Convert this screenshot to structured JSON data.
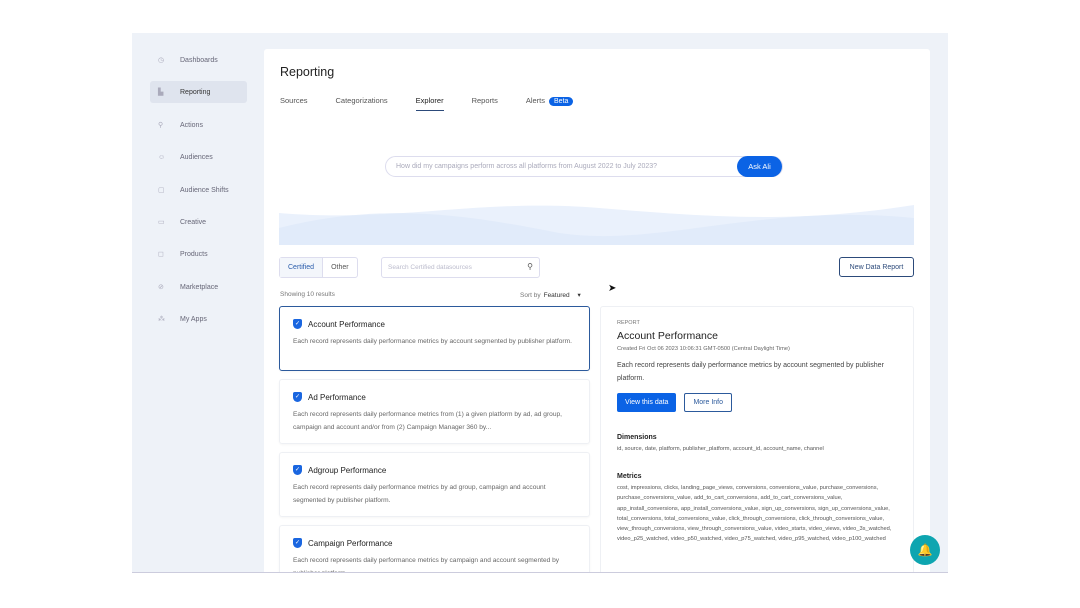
{
  "sidebar": {
    "items": [
      {
        "label": "Dashboards",
        "icon": "clock-icon",
        "active": false
      },
      {
        "label": "Reporting",
        "icon": "bar-chart-icon",
        "active": true
      },
      {
        "label": "Actions",
        "icon": "pin-icon",
        "active": false
      },
      {
        "label": "Audiences",
        "icon": "users-icon",
        "active": false
      },
      {
        "label": "Audience Shifts",
        "icon": "thumb-icon",
        "active": false
      },
      {
        "label": "Creative",
        "icon": "image-icon",
        "active": false
      },
      {
        "label": "Products",
        "icon": "bag-icon",
        "active": false
      },
      {
        "label": "Marketplace",
        "icon": "compass-icon",
        "active": false
      },
      {
        "label": "My Apps",
        "icon": "apps-icon",
        "active": false
      }
    ]
  },
  "header": {
    "title": "Reporting"
  },
  "tabs": [
    {
      "label": "Sources"
    },
    {
      "label": "Categorizations"
    },
    {
      "label": "Explorer",
      "active": true
    },
    {
      "label": "Reports"
    },
    {
      "label": "Alerts",
      "badge": "Beta"
    }
  ],
  "ask": {
    "placeholder": "How did my campaigns perform across all platforms from August 2022 to July 2023?",
    "button": "Ask Ali"
  },
  "filter": {
    "certified": "Certified",
    "other": "Other",
    "search_placeholder": "Search Certified datasources",
    "new_report": "New Data Report",
    "showing": "Showing 10 results",
    "sort_label": "Sort by",
    "sort_value": "Featured"
  },
  "cards": [
    {
      "title": "Account Performance",
      "desc": "Each record represents daily performance metrics by account segmented by publisher platform."
    },
    {
      "title": "Ad Performance",
      "desc": "Each record represents daily performance metrics from (1) a given platform by ad, ad group, campaign and account and/or from (2) Campaign Manager 360 by..."
    },
    {
      "title": "Adgroup Performance",
      "desc": "Each record represents daily performance metrics by ad group, campaign and account segmented by publisher platform."
    },
    {
      "title": "Campaign Performance",
      "desc": "Each record represents daily performance metrics by campaign and account segmented by publisher platform."
    }
  ],
  "detail": {
    "label": "REPORT",
    "title": "Account Performance",
    "created": "Created Fri Oct 06 2023 10:06:31 GMT-0500 (Central Daylight Time)",
    "desc": "Each record represents daily performance metrics by account segmented by publisher platform.",
    "view": "View this data",
    "more": "More Info",
    "dimensions_label": "Dimensions",
    "dimensions": "id, source, date, platform, publisher_platform, account_id, account_name, channel",
    "metrics_label": "Metrics",
    "metrics": "cost, impressions, clicks, landing_page_views, conversions, conversions_value, purchase_conversions, purchase_conversions_value, add_to_cart_conversions, add_to_cart_conversions_value, app_install_conversions, app_install_conversions_value, sign_up_conversions, sign_up_conversions_value, total_conversions, total_conversions_value, click_through_conversions, click_through_conversions_value, view_through_conversions, view_through_conversions_value, video_starts, video_views, video_3s_watched, video_p25_watched, video_p50_watched, video_p75_watched, video_p95_watched, video_p100_watched"
  },
  "colors": {
    "accent": "#0b63e5",
    "chat": "#0ea5b0"
  }
}
